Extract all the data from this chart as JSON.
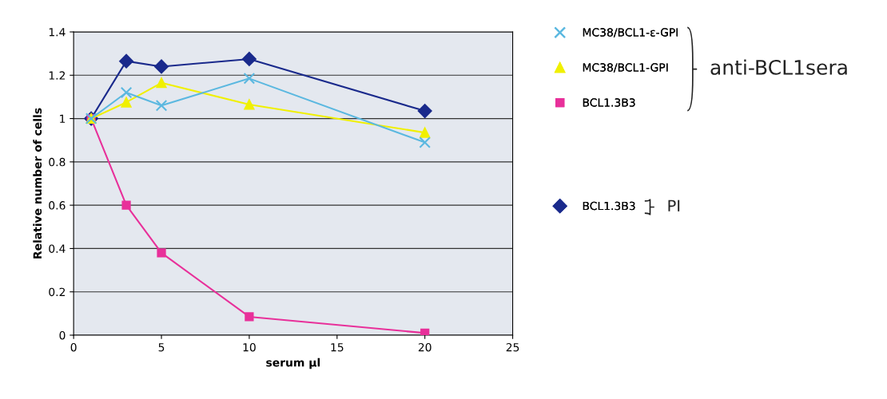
{
  "chart_data": {
    "type": "line",
    "xlabel": "serum µl",
    "ylabel": "Relative number of cells",
    "x": [
      1,
      3,
      5,
      10,
      20
    ],
    "series": [
      {
        "name": "MC38/BCL1-ε-GPI",
        "color": "#5bb8e0",
        "marker": "cross",
        "values": [
          1.0,
          1.12,
          1.06,
          1.185,
          0.89
        ]
      },
      {
        "name": "MC38/BCL1-GPI",
        "color": "#f0f000",
        "marker": "triangle",
        "values": [
          1.0,
          1.075,
          1.165,
          1.065,
          0.935
        ]
      },
      {
        "name": "BCL1.3B3",
        "color": "#e8309a",
        "marker": "square",
        "values": [
          1.0,
          0.6,
          0.38,
          0.085,
          0.01
        ]
      },
      {
        "name": "BCL1.3B3",
        "color": "#1a2a8c",
        "marker": "diamond",
        "values": [
          1.0,
          1.265,
          1.24,
          1.275,
          1.035
        ]
      }
    ],
    "xlim": [
      0,
      25
    ],
    "xticks": [
      0,
      5,
      10,
      15,
      20,
      25
    ],
    "ylim": [
      0,
      1.4
    ],
    "yticks": [
      0,
      0.2,
      0.4,
      0.6,
      0.8,
      1,
      1.2,
      1.4
    ],
    "grid": "y",
    "legend": "right",
    "annotations": [
      "anti-BCL1sera",
      "PI"
    ]
  }
}
